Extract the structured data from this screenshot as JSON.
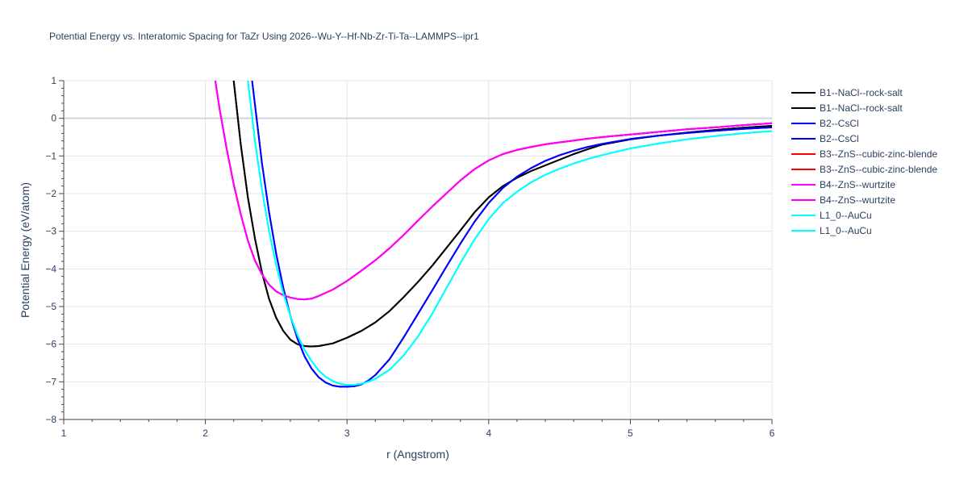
{
  "chart_data": {
    "type": "line",
    "title": "Potential Energy vs. Interatomic Spacing for TaZr Using 2026--Wu-Y--Hf-Nb-Zr-Ti-Ta--LAMMPS--ipr1",
    "xlabel": "r (Angstrom)",
    "ylabel": "Potential Energy (eV/atom)",
    "xlim": [
      1,
      6
    ],
    "ylim": [
      -8,
      1
    ],
    "x_ticks": [
      "1",
      "2",
      "3",
      "4",
      "5",
      "6"
    ],
    "y_ticks": [
      "1",
      "0",
      "−1",
      "−2",
      "−3",
      "−4",
      "−5",
      "−6",
      "−7",
      "−8"
    ],
    "grid": true,
    "legend_position": "right",
    "series": [
      {
        "name": "B1--NaCl--rock-salt",
        "color": "#000000",
        "x": [
          2.2,
          2.25,
          2.3,
          2.35,
          2.4,
          2.45,
          2.5,
          2.55,
          2.6,
          2.65,
          2.7,
          2.75,
          2.8,
          2.9,
          3.0,
          3.1,
          3.2,
          3.3,
          3.4,
          3.5,
          3.6,
          3.7,
          3.8,
          3.9,
          4.0,
          4.1,
          4.2,
          4.3,
          4.4,
          4.5,
          4.6,
          4.7,
          4.8,
          5.0,
          5.2,
          5.4,
          5.6,
          5.8,
          6.0
        ],
        "y": [
          1.0,
          -0.7,
          -2.1,
          -3.2,
          -4.1,
          -4.8,
          -5.3,
          -5.65,
          -5.88,
          -6.0,
          -6.05,
          -6.06,
          -6.05,
          -5.98,
          -5.83,
          -5.65,
          -5.42,
          -5.12,
          -4.75,
          -4.35,
          -3.92,
          -3.45,
          -2.98,
          -2.5,
          -2.1,
          -1.8,
          -1.58,
          -1.4,
          -1.25,
          -1.1,
          -0.95,
          -0.82,
          -0.7,
          -0.56,
          -0.46,
          -0.38,
          -0.31,
          -0.25,
          -0.2
        ]
      },
      {
        "name": "B1--NaCl--rock-salt",
        "color": "#000000",
        "x": [
          2.2,
          2.25,
          2.3,
          2.35,
          2.4,
          2.45,
          2.5,
          2.55,
          2.6,
          2.65,
          2.7,
          2.75,
          2.8,
          2.9,
          3.0,
          3.1,
          3.2,
          3.3,
          3.4,
          3.5,
          3.6,
          3.7,
          3.8,
          3.9,
          4.0,
          4.1,
          4.2,
          4.3,
          4.4,
          4.5,
          4.6,
          4.7,
          4.8,
          5.0,
          5.2,
          5.4,
          5.6,
          5.8,
          6.0
        ],
        "y": [
          1.0,
          -0.7,
          -2.1,
          -3.2,
          -4.1,
          -4.8,
          -5.3,
          -5.65,
          -5.88,
          -6.0,
          -6.05,
          -6.06,
          -6.05,
          -5.98,
          -5.83,
          -5.65,
          -5.42,
          -5.12,
          -4.75,
          -4.35,
          -3.92,
          -3.45,
          -2.98,
          -2.5,
          -2.1,
          -1.8,
          -1.58,
          -1.4,
          -1.25,
          -1.1,
          -0.95,
          -0.82,
          -0.7,
          -0.56,
          -0.46,
          -0.38,
          -0.31,
          -0.25,
          -0.2
        ]
      },
      {
        "name": "B2--CsCl",
        "color": "#0000ff",
        "x": [
          2.33,
          2.4,
          2.45,
          2.5,
          2.55,
          2.6,
          2.65,
          2.7,
          2.75,
          2.8,
          2.85,
          2.9,
          2.95,
          3.0,
          3.05,
          3.1,
          3.15,
          3.2,
          3.3,
          3.4,
          3.5,
          3.6,
          3.7,
          3.8,
          3.9,
          4.0,
          4.1,
          4.2,
          4.3,
          4.4,
          4.5,
          4.6,
          4.7,
          4.8,
          5.0,
          5.2,
          5.4,
          5.6,
          5.8,
          6.0
        ],
        "y": [
          1.0,
          -1.2,
          -2.5,
          -3.6,
          -4.5,
          -5.25,
          -5.85,
          -6.32,
          -6.65,
          -6.88,
          -7.02,
          -7.1,
          -7.13,
          -7.13,
          -7.12,
          -7.07,
          -6.97,
          -6.82,
          -6.4,
          -5.82,
          -5.2,
          -4.58,
          -3.95,
          -3.33,
          -2.75,
          -2.25,
          -1.85,
          -1.55,
          -1.32,
          -1.13,
          -0.98,
          -0.86,
          -0.76,
          -0.68,
          -0.55,
          -0.46,
          -0.39,
          -0.33,
          -0.28,
          -0.24
        ]
      },
      {
        "name": "B2--CsCl",
        "color": "#0000ff",
        "x": [
          2.33,
          2.4,
          2.45,
          2.5,
          2.55,
          2.6,
          2.65,
          2.7,
          2.75,
          2.8,
          2.85,
          2.9,
          2.95,
          3.0,
          3.05,
          3.1,
          3.15,
          3.2,
          3.3,
          3.4,
          3.5,
          3.6,
          3.7,
          3.8,
          3.9,
          4.0,
          4.1,
          4.2,
          4.3,
          4.4,
          4.5,
          4.6,
          4.7,
          4.8,
          5.0,
          5.2,
          5.4,
          5.6,
          5.8,
          6.0
        ],
        "y": [
          1.0,
          -1.2,
          -2.5,
          -3.6,
          -4.5,
          -5.25,
          -5.85,
          -6.32,
          -6.65,
          -6.88,
          -7.02,
          -7.1,
          -7.13,
          -7.13,
          -7.12,
          -7.07,
          -6.97,
          -6.82,
          -6.4,
          -5.82,
          -5.2,
          -4.58,
          -3.95,
          -3.33,
          -2.75,
          -2.25,
          -1.85,
          -1.55,
          -1.32,
          -1.13,
          -0.98,
          -0.86,
          -0.76,
          -0.68,
          -0.55,
          -0.46,
          -0.39,
          -0.33,
          -0.28,
          -0.24
        ]
      },
      {
        "name": "B3--ZnS--cubic-zinc-blende",
        "color": "#ff0000",
        "x": [
          2.07,
          2.1,
          2.15,
          2.2,
          2.25,
          2.3,
          2.35,
          2.4,
          2.45,
          2.5,
          2.55,
          2.6,
          2.65,
          2.7,
          2.75,
          2.8,
          2.9,
          3.0,
          3.1,
          3.2,
          3.3,
          3.4,
          3.5,
          3.6,
          3.7,
          3.8,
          3.9,
          4.0,
          4.1,
          4.2,
          4.3,
          4.4,
          4.5,
          4.6,
          4.7,
          4.8,
          5.0,
          5.2,
          5.4,
          5.6,
          5.8,
          6.0
        ],
        "y": [
          1.0,
          0.25,
          -0.8,
          -1.75,
          -2.55,
          -3.25,
          -3.78,
          -4.15,
          -4.42,
          -4.6,
          -4.7,
          -4.76,
          -4.8,
          -4.81,
          -4.79,
          -4.72,
          -4.55,
          -4.32,
          -4.05,
          -3.77,
          -3.45,
          -3.1,
          -2.72,
          -2.35,
          -2.0,
          -1.65,
          -1.35,
          -1.12,
          -0.95,
          -0.84,
          -0.76,
          -0.69,
          -0.64,
          -0.59,
          -0.54,
          -0.5,
          -0.43,
          -0.36,
          -0.29,
          -0.24,
          -0.18,
          -0.13
        ]
      },
      {
        "name": "B3--ZnS--cubic-zinc-blende",
        "color": "#ff0000",
        "x": [
          2.07,
          2.1,
          2.15,
          2.2,
          2.25,
          2.3,
          2.35,
          2.4,
          2.45,
          2.5,
          2.55,
          2.6,
          2.65,
          2.7,
          2.75,
          2.8,
          2.9,
          3.0,
          3.1,
          3.2,
          3.3,
          3.4,
          3.5,
          3.6,
          3.7,
          3.8,
          3.9,
          4.0,
          4.1,
          4.2,
          4.3,
          4.4,
          4.5,
          4.6,
          4.7,
          4.8,
          5.0,
          5.2,
          5.4,
          5.6,
          5.8,
          6.0
        ],
        "y": [
          1.0,
          0.25,
          -0.8,
          -1.75,
          -2.55,
          -3.25,
          -3.78,
          -4.15,
          -4.42,
          -4.6,
          -4.7,
          -4.76,
          -4.8,
          -4.81,
          -4.79,
          -4.72,
          -4.55,
          -4.32,
          -4.05,
          -3.77,
          -3.45,
          -3.1,
          -2.72,
          -2.35,
          -2.0,
          -1.65,
          -1.35,
          -1.12,
          -0.95,
          -0.84,
          -0.76,
          -0.69,
          -0.64,
          -0.59,
          -0.54,
          -0.5,
          -0.43,
          -0.36,
          -0.29,
          -0.24,
          -0.18,
          -0.13
        ]
      },
      {
        "name": "B4--ZnS--wurtzite",
        "color": "#ff00ff",
        "x": [
          2.07,
          2.1,
          2.15,
          2.2,
          2.25,
          2.3,
          2.35,
          2.4,
          2.45,
          2.5,
          2.55,
          2.6,
          2.65,
          2.7,
          2.75,
          2.8,
          2.9,
          3.0,
          3.1,
          3.2,
          3.3,
          3.4,
          3.5,
          3.6,
          3.7,
          3.8,
          3.9,
          4.0,
          4.1,
          4.2,
          4.3,
          4.4,
          4.5,
          4.6,
          4.7,
          4.8,
          5.0,
          5.2,
          5.4,
          5.6,
          5.8,
          6.0
        ],
        "y": [
          1.0,
          0.25,
          -0.8,
          -1.75,
          -2.55,
          -3.25,
          -3.78,
          -4.15,
          -4.42,
          -4.6,
          -4.7,
          -4.76,
          -4.8,
          -4.81,
          -4.79,
          -4.72,
          -4.55,
          -4.32,
          -4.05,
          -3.77,
          -3.45,
          -3.1,
          -2.72,
          -2.35,
          -2.0,
          -1.65,
          -1.35,
          -1.12,
          -0.95,
          -0.84,
          -0.76,
          -0.69,
          -0.64,
          -0.59,
          -0.54,
          -0.5,
          -0.43,
          -0.36,
          -0.29,
          -0.24,
          -0.18,
          -0.13
        ]
      },
      {
        "name": "B4--ZnS--wurtzite",
        "color": "#ff00ff",
        "x": [
          2.07,
          2.1,
          2.15,
          2.2,
          2.25,
          2.3,
          2.35,
          2.4,
          2.45,
          2.5,
          2.55,
          2.6,
          2.65,
          2.7,
          2.75,
          2.8,
          2.9,
          3.0,
          3.1,
          3.2,
          3.3,
          3.4,
          3.5,
          3.6,
          3.7,
          3.8,
          3.9,
          4.0,
          4.1,
          4.2,
          4.3,
          4.4,
          4.5,
          4.6,
          4.7,
          4.8,
          5.0,
          5.2,
          5.4,
          5.6,
          5.8,
          6.0
        ],
        "y": [
          1.0,
          0.25,
          -0.8,
          -1.75,
          -2.55,
          -3.25,
          -3.78,
          -4.15,
          -4.42,
          -4.6,
          -4.7,
          -4.76,
          -4.8,
          -4.81,
          -4.79,
          -4.72,
          -4.55,
          -4.32,
          -4.05,
          -3.77,
          -3.45,
          -3.1,
          -2.72,
          -2.35,
          -2.0,
          -1.65,
          -1.35,
          -1.12,
          -0.95,
          -0.84,
          -0.76,
          -0.69,
          -0.64,
          -0.59,
          -0.54,
          -0.5,
          -0.43,
          -0.36,
          -0.29,
          -0.24,
          -0.18,
          -0.13
        ]
      },
      {
        "name": "L1_0--AuCu",
        "color": "#00ffff",
        "x": [
          2.3,
          2.35,
          2.4,
          2.45,
          2.5,
          2.55,
          2.6,
          2.65,
          2.7,
          2.75,
          2.8,
          2.85,
          2.9,
          2.95,
          3.0,
          3.05,
          3.1,
          3.15,
          3.2,
          3.3,
          3.4,
          3.5,
          3.6,
          3.7,
          3.8,
          3.9,
          4.0,
          4.1,
          4.2,
          4.3,
          4.4,
          4.5,
          4.6,
          4.7,
          4.8,
          5.0,
          5.2,
          5.4,
          5.6,
          5.8,
          6.0
        ],
        "y": [
          1.0,
          -0.6,
          -1.9,
          -3.0,
          -3.9,
          -4.65,
          -5.25,
          -5.75,
          -6.15,
          -6.45,
          -6.7,
          -6.87,
          -6.98,
          -7.05,
          -7.08,
          -7.08,
          -7.05,
          -7.0,
          -6.92,
          -6.68,
          -6.3,
          -5.8,
          -5.2,
          -4.52,
          -3.85,
          -3.22,
          -2.68,
          -2.25,
          -1.95,
          -1.7,
          -1.5,
          -1.34,
          -1.2,
          -1.08,
          -0.98,
          -0.8,
          -0.67,
          -0.56,
          -0.47,
          -0.4,
          -0.34
        ]
      },
      {
        "name": "L1_0--AuCu",
        "color": "#00ffff",
        "x": [
          2.3,
          2.35,
          2.4,
          2.45,
          2.5,
          2.55,
          2.6,
          2.65,
          2.7,
          2.75,
          2.8,
          2.85,
          2.9,
          2.95,
          3.0,
          3.05,
          3.1,
          3.15,
          3.2,
          3.3,
          3.4,
          3.5,
          3.6,
          3.7,
          3.8,
          3.9,
          4.0,
          4.1,
          4.2,
          4.3,
          4.4,
          4.5,
          4.6,
          4.7,
          4.8,
          5.0,
          5.2,
          5.4,
          5.6,
          5.8,
          6.0
        ],
        "y": [
          1.0,
          -0.6,
          -1.9,
          -3.0,
          -3.9,
          -4.65,
          -5.25,
          -5.75,
          -6.15,
          -6.45,
          -6.7,
          -6.87,
          -6.98,
          -7.05,
          -7.08,
          -7.08,
          -7.05,
          -7.0,
          -6.92,
          -6.68,
          -6.3,
          -5.8,
          -5.2,
          -4.52,
          -3.85,
          -3.22,
          -2.68,
          -2.25,
          -1.95,
          -1.7,
          -1.5,
          -1.34,
          -1.2,
          -1.08,
          -0.98,
          -0.8,
          -0.67,
          -0.56,
          -0.47,
          -0.4,
          -0.34
        ]
      }
    ]
  }
}
